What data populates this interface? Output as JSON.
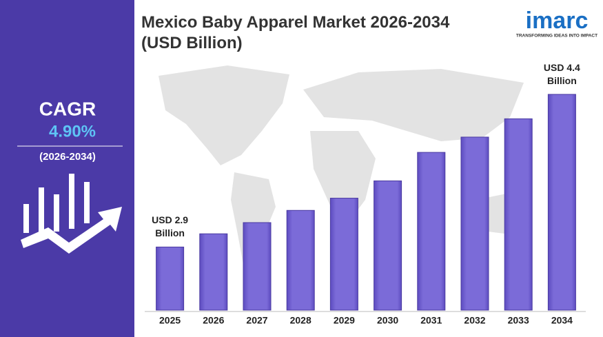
{
  "chart_data": {
    "type": "bar",
    "title": "Mexico Baby Apparel Market 2026-2034 (USD Billion)",
    "categories": [
      "2025",
      "2026",
      "2027",
      "2028",
      "2029",
      "2030",
      "2031",
      "2032",
      "2033",
      "2034"
    ],
    "values": [
      2.9,
      3.03,
      3.14,
      3.26,
      3.38,
      3.55,
      3.83,
      3.98,
      4.16,
      4.4
    ],
    "value_labels": [
      "USD 2.9 Billion",
      null,
      null,
      null,
      null,
      null,
      null,
      null,
      null,
      "USD 4.4 Billion"
    ],
    "color": "#7b6bd8",
    "ylim": [
      2.28,
      4.65
    ]
  },
  "sidebar": {
    "label": "CAGR",
    "value": "4.90%",
    "period": "(2026-2034)"
  },
  "logo": {
    "name": "imarc",
    "tagline": "TRANSFORMING IDEAS INTO IMPACT"
  }
}
